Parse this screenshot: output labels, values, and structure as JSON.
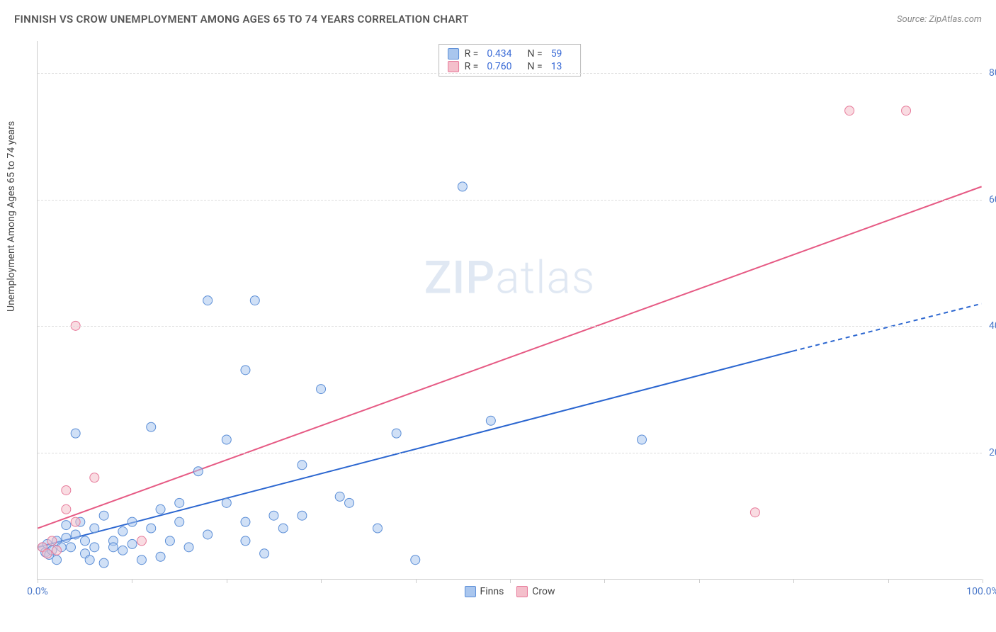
{
  "title": "FINNISH VS CROW UNEMPLOYMENT AMONG AGES 65 TO 74 YEARS CORRELATION CHART",
  "source": "Source: ZipAtlas.com",
  "ylabel": "Unemployment Among Ages 65 to 74 years",
  "watermark_zip": "ZIP",
  "watermark_atlas": "atlas",
  "chart": {
    "type": "scatter",
    "background_color": "#ffffff",
    "grid_color": "#dddddd",
    "axis_color": "#cccccc",
    "tick_label_color": "#4a78c9",
    "xlim": [
      0,
      100
    ],
    "ylim": [
      0,
      85
    ],
    "xticks": [
      0,
      10,
      20,
      30,
      40,
      50,
      60,
      70,
      80,
      90,
      100
    ],
    "xtick_labels": {
      "0": "0.0%",
      "100": "100.0%"
    },
    "yticks": [
      20,
      40,
      60,
      80
    ],
    "ytick_labels": {
      "20": "20.0%",
      "40": "40.0%",
      "60": "60.0%",
      "80": "80.0%"
    },
    "marker_radius": 6.5,
    "marker_opacity": 0.55,
    "line_width": 2,
    "series": [
      {
        "name": "Finns",
        "label": "Finns",
        "color_fill": "#a9c6ee",
        "color_stroke": "#5a8dd6",
        "r": "0.434",
        "n": "59",
        "trend": {
          "x1": 0,
          "y1": 5,
          "x2": 80,
          "y2": 36,
          "dash_x2": 100,
          "dash_y2": 43.5,
          "color": "#2b66d0"
        },
        "points": [
          [
            0.5,
            5
          ],
          [
            0.8,
            4.2
          ],
          [
            1,
            5.5
          ],
          [
            1.2,
            3.8
          ],
          [
            1.5,
            4.5
          ],
          [
            2,
            6
          ],
          [
            2,
            3
          ],
          [
            2.5,
            5
          ],
          [
            3,
            6.5
          ],
          [
            3,
            8.5
          ],
          [
            3.5,
            5
          ],
          [
            4,
            7
          ],
          [
            4,
            23
          ],
          [
            4.5,
            9
          ],
          [
            5,
            4
          ],
          [
            5,
            6
          ],
          [
            5.5,
            3
          ],
          [
            6,
            8
          ],
          [
            6,
            5
          ],
          [
            7,
            10
          ],
          [
            7,
            2.5
          ],
          [
            8,
            6
          ],
          [
            8,
            5
          ],
          [
            9,
            4.5
          ],
          [
            9,
            7.5
          ],
          [
            10,
            5.5
          ],
          [
            10,
            9
          ],
          [
            11,
            3
          ],
          [
            12,
            24
          ],
          [
            12,
            8
          ],
          [
            13,
            11
          ],
          [
            13,
            3.5
          ],
          [
            14,
            6
          ],
          [
            15,
            9
          ],
          [
            15,
            12
          ],
          [
            16,
            5
          ],
          [
            17,
            17
          ],
          [
            18,
            7
          ],
          [
            18,
            44
          ],
          [
            20,
            22
          ],
          [
            20,
            12
          ],
          [
            22,
            33
          ],
          [
            22,
            9
          ],
          [
            22,
            6
          ],
          [
            23,
            44
          ],
          [
            24,
            4
          ],
          [
            25,
            10
          ],
          [
            26,
            8
          ],
          [
            28,
            18
          ],
          [
            28,
            10
          ],
          [
            30,
            30
          ],
          [
            32,
            13
          ],
          [
            33,
            12
          ],
          [
            36,
            8
          ],
          [
            38,
            23
          ],
          [
            40,
            3
          ],
          [
            45,
            62
          ],
          [
            48,
            25
          ],
          [
            64,
            22
          ]
        ]
      },
      {
        "name": "Crow",
        "label": "Crow",
        "color_fill": "#f4bfcb",
        "color_stroke": "#e77a9a",
        "r": "0.760",
        "n": "13",
        "trend": {
          "x1": 0,
          "y1": 8,
          "x2": 100,
          "y2": 62,
          "color": "#e65a84"
        },
        "points": [
          [
            0.5,
            5
          ],
          [
            1,
            4
          ],
          [
            1.5,
            6
          ],
          [
            2,
            4.5
          ],
          [
            3,
            14
          ],
          [
            3,
            11
          ],
          [
            4,
            9
          ],
          [
            4,
            40
          ],
          [
            6,
            16
          ],
          [
            11,
            6
          ],
          [
            76,
            10.5
          ],
          [
            86,
            74
          ],
          [
            92,
            74
          ]
        ]
      }
    ]
  },
  "legend_top": {
    "r_label": "R =",
    "n_label": "N ="
  },
  "legend_bottom": {
    "items": [
      "Finns",
      "Crow"
    ]
  }
}
